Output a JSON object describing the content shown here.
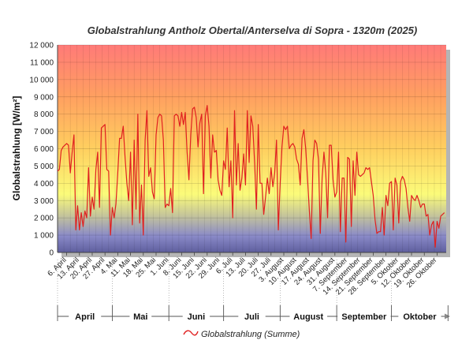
{
  "chart_data": {
    "type": "line",
    "title": "Globalstrahlung Antholz Obertal/Anterselva di Sopra - 1320m (2025)",
    "ylabel": "Globalstrahlung [W/m²]",
    "ylim": [
      0,
      12000
    ],
    "yticks": [
      "0",
      "1 000",
      "2 000",
      "3 000",
      "4 000",
      "5 000",
      "6 000",
      "7 000",
      "8 000",
      "9 000",
      "10 000",
      "11 000",
      "12 000"
    ],
    "x_start": "2025-04-01",
    "x_end": "2025-10-31",
    "x_ticks": [
      {
        "date": "2025-04-06",
        "label": "6. April"
      },
      {
        "date": "2025-04-13",
        "label": "13. April"
      },
      {
        "date": "2025-04-20",
        "label": "20. April"
      },
      {
        "date": "2025-04-27",
        "label": "27. April"
      },
      {
        "date": "2025-05-04",
        "label": "4. Mai"
      },
      {
        "date": "2025-05-11",
        "label": "11. Mai"
      },
      {
        "date": "2025-05-18",
        "label": "18. Mai"
      },
      {
        "date": "2025-05-25",
        "label": "25. Mai"
      },
      {
        "date": "2025-06-01",
        "label": "1. Juni"
      },
      {
        "date": "2025-06-08",
        "label": "8. Juni"
      },
      {
        "date": "2025-06-15",
        "label": "15. Juni"
      },
      {
        "date": "2025-06-22",
        "label": "22. Juni"
      },
      {
        "date": "2025-06-29",
        "label": "29. Juni"
      },
      {
        "date": "2025-07-06",
        "label": "6. Juli"
      },
      {
        "date": "2025-07-13",
        "label": "13. Juli"
      },
      {
        "date": "2025-07-20",
        "label": "20. Juli"
      },
      {
        "date": "2025-07-27",
        "label": "27. Juli"
      },
      {
        "date": "2025-08-03",
        "label": "3. August"
      },
      {
        "date": "2025-08-10",
        "label": "10. August"
      },
      {
        "date": "2025-08-17",
        "label": "17. August"
      },
      {
        "date": "2025-08-24",
        "label": "24. August"
      },
      {
        "date": "2025-08-31",
        "label": "31. August"
      },
      {
        "date": "2025-09-07",
        "label": "7. September"
      },
      {
        "date": "2025-09-14",
        "label": "14. September"
      },
      {
        "date": "2025-09-21",
        "label": "21. September"
      },
      {
        "date": "2025-09-28",
        "label": "28. September"
      },
      {
        "date": "2025-10-05",
        "label": "5. Oktober"
      },
      {
        "date": "2025-10-12",
        "label": "12. Oktober"
      },
      {
        "date": "2025-10-19",
        "label": "19. Oktober"
      },
      {
        "date": "2025-10-26",
        "label": "26. Oktober"
      }
    ],
    "months": [
      {
        "label": "April",
        "start": "2025-04-01",
        "end": "2025-04-30"
      },
      {
        "label": "Mai",
        "start": "2025-05-01",
        "end": "2025-05-31"
      },
      {
        "label": "Juni",
        "start": "2025-06-01",
        "end": "2025-06-30"
      },
      {
        "label": "Juli",
        "start": "2025-07-01",
        "end": "2025-07-31"
      },
      {
        "label": "August",
        "start": "2025-08-01",
        "end": "2025-08-31"
      },
      {
        "label": "September",
        "start": "2025-09-01",
        "end": "2025-09-30"
      },
      {
        "label": "Oktober",
        "start": "2025-10-01",
        "end": "2025-10-31"
      }
    ],
    "series": [
      {
        "name": "Globalstrahlung (Summe)",
        "color": "#e02020",
        "start_date": "2025-04-01",
        "values": [
          4700,
          4800,
          5900,
          6100,
          6200,
          6300,
          6200,
          4600,
          5800,
          6800,
          1300,
          2700,
          1300,
          2300,
          1500,
          2400,
          2000,
          4900,
          2100,
          3200,
          2500,
          4800,
          5800,
          2600,
          7200,
          7300,
          7400,
          4800,
          4700,
          1000,
          2600,
          2000,
          2800,
          4600,
          6600,
          6600,
          7300,
          5500,
          4000,
          3000,
          5800,
          1600,
          6500,
          2500,
          8000,
          1700,
          3900,
          1000,
          6500,
          8200,
          4400,
          4900,
          3500,
          3100,
          6800,
          7800,
          8000,
          7900,
          6500,
          2600,
          2800,
          2700,
          3700,
          2300,
          7900,
          8000,
          7900,
          7300,
          8100,
          7400,
          8100,
          5800,
          4200,
          6800,
          8300,
          8400,
          7800,
          6100,
          7500,
          8000,
          3400,
          7900,
          8500,
          7300,
          4300,
          6800,
          5800,
          5900,
          4200,
          3600,
          3300,
          5300,
          4800,
          7200,
          3800,
          5300,
          2000,
          8200,
          3900,
          6300,
          3600,
          4300,
          5700,
          3900,
          8200,
          5200,
          7900,
          7300,
          5200,
          2500,
          7400,
          4000,
          4000,
          2200,
          3200,
          4300,
          3400,
          4900,
          3800,
          4600,
          6500,
          1300,
          4000,
          6100,
          7300,
          7100,
          7300,
          6000,
          6200,
          6300,
          6100,
          5400,
          5100,
          3900,
          6600,
          7100,
          6000,
          4300,
          2400,
          800,
          5300,
          6500,
          6300,
          5400,
          1100,
          4300,
          5800,
          4600,
          2000,
          6200,
          6200,
          4200,
          3200,
          3500,
          5800,
          1200,
          4300,
          4300,
          600,
          5500,
          5400,
          1500,
          5300,
          3300,
          5800,
          4500,
          4400,
          4500,
          4600,
          4900,
          4800,
          4900,
          4100,
          3300,
          1900,
          1100,
          1200,
          1200,
          2600,
          1000,
          3300,
          2700,
          4000,
          4100,
          1300,
          4300,
          3900,
          1700,
          4100,
          4400,
          4200,
          3700,
          2600,
          1800,
          3300,
          3100,
          3000,
          3300,
          3000,
          2600,
          2800,
          2800,
          2100,
          2200,
          1000,
          1600,
          1800,
          300,
          1800,
          1400,
          2100,
          2200,
          2300
        ]
      }
    ],
    "legend": [
      "Globalstrahlung (Summe)"
    ],
    "legend_position": "bottom-center",
    "grid": true,
    "background_gradient": [
      "#8a8ae0",
      "#fbfb7a",
      "#ffbf66",
      "#ff7070"
    ]
  }
}
